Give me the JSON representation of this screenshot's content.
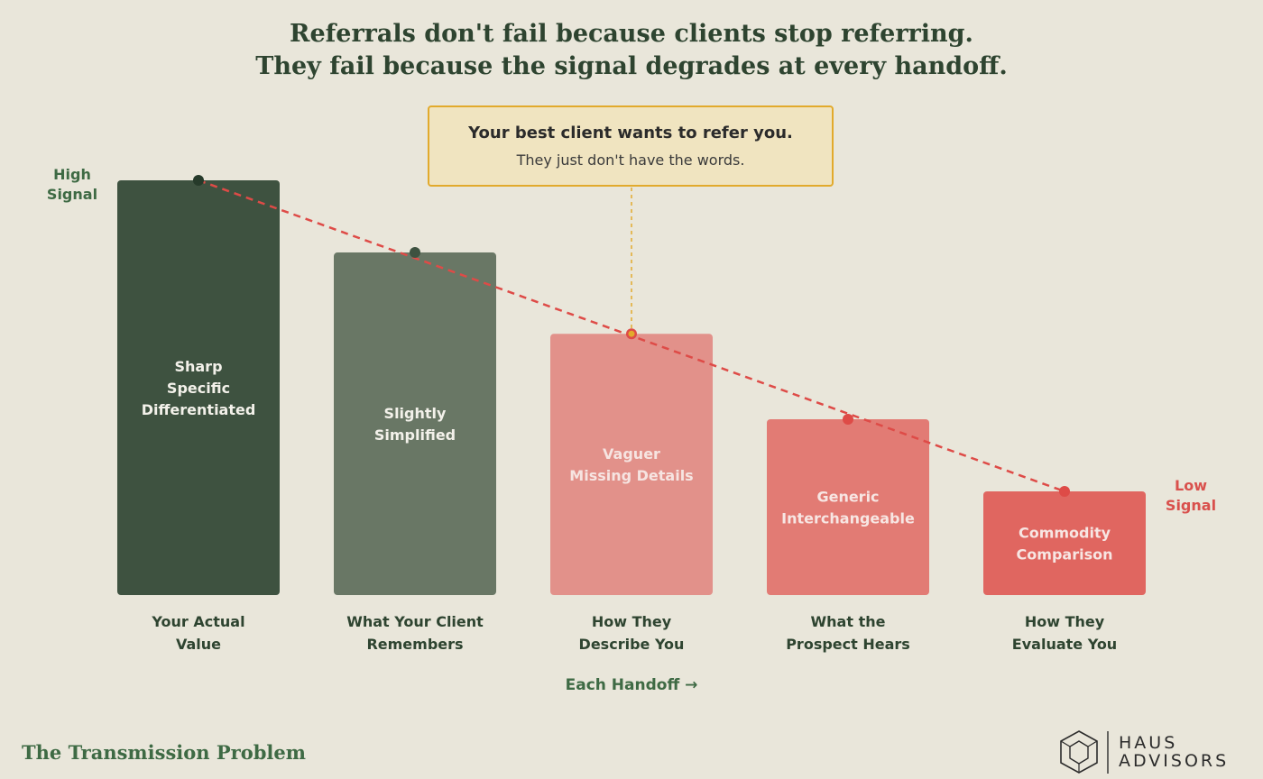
{
  "header": {
    "line1": "Referrals don't fail because clients stop referring.",
    "line2": "They fail because the signal degrades at every handoff."
  },
  "callout": {
    "headline": "Your best client wants to refer you.",
    "subline": "They just don't have the words."
  },
  "signal": {
    "high": [
      "High",
      "Signal"
    ],
    "low": [
      "Low",
      "Signal"
    ]
  },
  "axis": {
    "handoff_label": "Each Handoff →"
  },
  "footer": {
    "title": "The Transmission Problem",
    "logo_top": "HAUS",
    "logo_bottom": "ADVISORS"
  },
  "colors": {
    "dark_green": "#3e5240",
    "muted_green": "#697765",
    "pink": "#e2918a",
    "salmon": "#e27b74",
    "red": "#e06660",
    "trend_line": "#de4b47",
    "callout_border": "#e2aa2c",
    "label_text": "#2e4430"
  },
  "chart_data": {
    "type": "bar",
    "categories": [
      "Your Actual Value",
      "What Your Client Remembers",
      "How They Describe You",
      "What the Prospect Hears",
      "How They Evaluate You"
    ],
    "category_lines": [
      [
        "Your Actual",
        "Value"
      ],
      [
        "What Your Client",
        "Remembers"
      ],
      [
        "How They",
        "Describe You"
      ],
      [
        "What the",
        "Prospect Hears"
      ],
      [
        "How They",
        "Evaluate You"
      ]
    ],
    "bar_labels": [
      [
        "Sharp",
        "Specific",
        "Differentiated"
      ],
      [
        "Slightly",
        "Simplified"
      ],
      [
        "Vaguer",
        "Missing Details"
      ],
      [
        "Generic",
        "Interchangeable"
      ],
      [
        "Commodity",
        "Comparison"
      ]
    ],
    "values": [
      100,
      82.6,
      63,
      42.4,
      25
    ],
    "ylim": [
      0,
      100
    ],
    "grid": false,
    "trend_line": true,
    "highlight_index": 2
  }
}
